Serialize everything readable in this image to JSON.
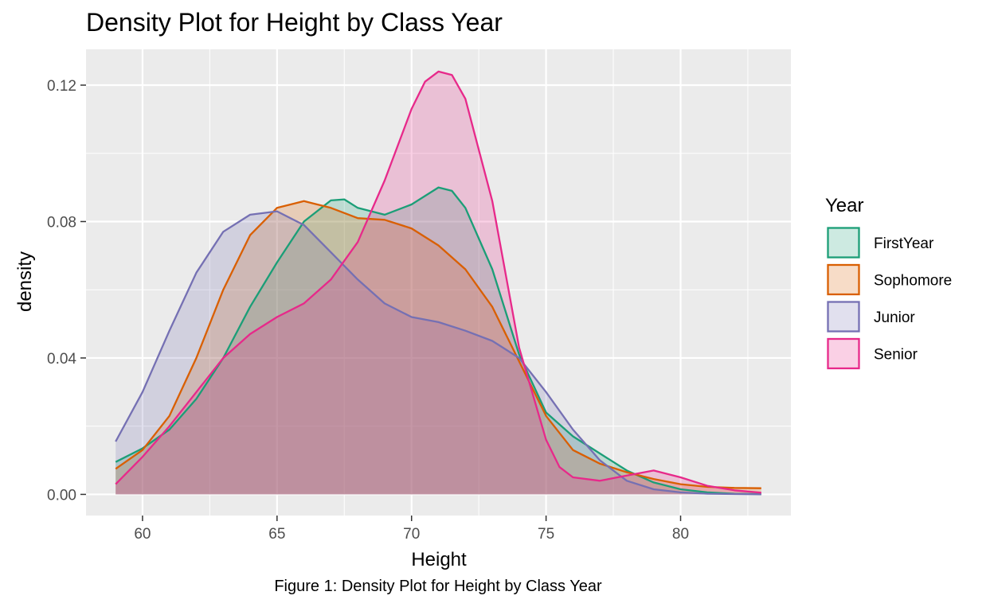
{
  "chart_data": {
    "type": "area",
    "subtype": "density",
    "title": "Density Plot for Height by Class Year",
    "xlabel": "Height",
    "ylabel": "density",
    "xlim": [
      57.9,
      84.1
    ],
    "ylim": [
      -0.0062,
      0.1305
    ],
    "xticks": [
      60,
      65,
      70,
      75,
      80
    ],
    "xtick_labels": [
      "60",
      "65",
      "70",
      "75",
      "80"
    ],
    "yticks": [
      0.0,
      0.04,
      0.08,
      0.12
    ],
    "ytick_labels": [
      "0.00",
      "0.04",
      "0.08",
      "0.12"
    ],
    "grid": true,
    "legend": {
      "title": "Year",
      "position": "right"
    },
    "series": [
      {
        "name": "FirstYear",
        "color": "#1b9e77",
        "x": [
          59,
          60,
          61,
          62,
          63,
          64,
          65,
          66,
          67,
          67.5,
          68,
          69,
          70,
          71,
          71.5,
          72,
          73,
          74,
          75,
          76,
          77,
          78,
          79,
          80,
          81,
          82,
          83
        ],
        "y": [
          0.0095,
          0.0135,
          0.019,
          0.028,
          0.04,
          0.055,
          0.068,
          0.08,
          0.0862,
          0.0865,
          0.084,
          0.082,
          0.085,
          0.09,
          0.089,
          0.084,
          0.066,
          0.041,
          0.024,
          0.017,
          0.012,
          0.007,
          0.0035,
          0.0015,
          0.0006,
          0.0002,
          0.0001
        ]
      },
      {
        "name": "Sophomore",
        "color": "#d95f02",
        "x": [
          59,
          60,
          61,
          62,
          63,
          64,
          65,
          66,
          67,
          68,
          69,
          70,
          71,
          72,
          73,
          74,
          75,
          76,
          77,
          78,
          79,
          80,
          81,
          82,
          83
        ],
        "y": [
          0.0075,
          0.013,
          0.023,
          0.04,
          0.06,
          0.076,
          0.084,
          0.086,
          0.084,
          0.081,
          0.0805,
          0.078,
          0.073,
          0.066,
          0.055,
          0.039,
          0.023,
          0.013,
          0.009,
          0.0065,
          0.0045,
          0.003,
          0.0022,
          0.0019,
          0.0018
        ]
      },
      {
        "name": "Junior",
        "color": "#7570b3",
        "x": [
          59,
          60,
          61,
          62,
          63,
          64,
          65,
          66,
          67,
          68,
          69,
          70,
          71,
          72,
          73,
          74,
          75,
          76,
          77,
          78,
          79,
          80,
          81,
          82,
          83
        ],
        "y": [
          0.0155,
          0.03,
          0.048,
          0.065,
          0.077,
          0.082,
          0.083,
          0.079,
          0.071,
          0.063,
          0.056,
          0.052,
          0.0505,
          0.048,
          0.045,
          0.04,
          0.03,
          0.019,
          0.01,
          0.004,
          0.0015,
          0.0006,
          0.0002,
          0.0001,
          0.0
        ]
      },
      {
        "name": "Senior",
        "color": "#e7298a",
        "x": [
          59,
          60,
          61,
          62,
          63,
          64,
          65,
          66,
          67,
          68,
          69,
          70,
          70.5,
          71,
          71.5,
          72,
          73,
          74,
          75,
          75.5,
          76,
          77,
          78,
          79,
          80,
          81,
          82,
          83
        ],
        "y": [
          0.003,
          0.011,
          0.02,
          0.03,
          0.04,
          0.047,
          0.052,
          0.056,
          0.063,
          0.074,
          0.092,
          0.113,
          0.121,
          0.124,
          0.123,
          0.116,
          0.086,
          0.043,
          0.016,
          0.008,
          0.005,
          0.004,
          0.0055,
          0.007,
          0.005,
          0.0025,
          0.0012,
          0.0005
        ]
      }
    ]
  },
  "caption": "Figure 1: Density Plot for Height by Class Year"
}
